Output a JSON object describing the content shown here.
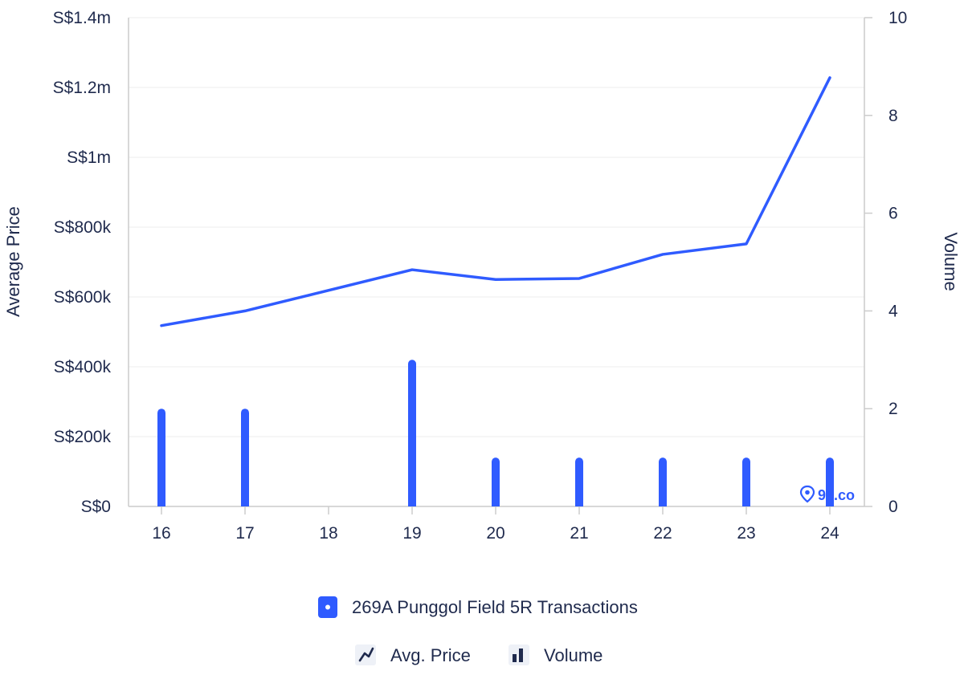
{
  "chart_data": {
    "type": "bar",
    "categories": [
      "16",
      "17",
      "18",
      "19",
      "20",
      "21",
      "22",
      "23",
      "24"
    ],
    "y_left": {
      "label": "Average Price",
      "ticks": [
        "S$0",
        "S$200k",
        "S$400k",
        "S$600k",
        "S$800k",
        "S$1m",
        "S$1.2m",
        "S$1.4m"
      ],
      "range": [
        0,
        1400000
      ]
    },
    "y_right": {
      "label": "Volume",
      "ticks": [
        "0",
        "2",
        "4",
        "6",
        "8",
        "10"
      ],
      "range": [
        0,
        10
      ]
    },
    "series": [
      {
        "name": "Avg. Price",
        "kind": "line",
        "axis": "left",
        "x": [
          "16",
          "17",
          "19",
          "20",
          "21",
          "22",
          "23",
          "24"
        ],
        "values": [
          518000,
          560000,
          678000,
          650000,
          653000,
          722000,
          752000,
          1228000
        ]
      },
      {
        "name": "Volume",
        "kind": "bar",
        "axis": "right",
        "x": [
          "16",
          "17",
          "19",
          "20",
          "21",
          "22",
          "23",
          "24"
        ],
        "values": [
          2,
          2,
          3,
          1,
          1,
          1,
          1,
          1
        ]
      }
    ],
    "grid": true,
    "legend": {
      "group_label": "269A Punggol Field 5R Transactions",
      "items": [
        "Avg. Price",
        "Volume"
      ],
      "position": "bottom"
    },
    "colors": {
      "series": "#2f5bff",
      "text": "#1f2a4d",
      "grid": "#eeeeee",
      "axis": "#cccccc"
    },
    "watermark": "99.co"
  }
}
